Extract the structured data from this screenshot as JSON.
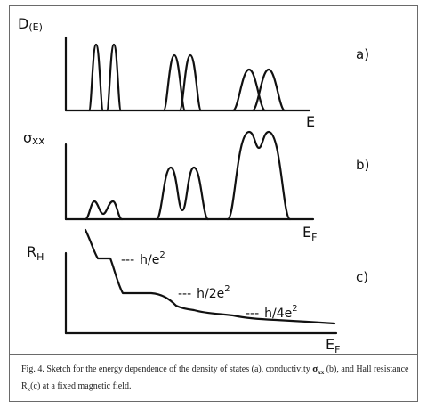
{
  "panels": {
    "a": {
      "tag": "a)",
      "ylabel_main": "D",
      "ylabel_sub": "(E)",
      "xlabel": "E"
    },
    "b": {
      "tag": "b)",
      "ylabel_main": "σ",
      "ylabel_sub": "xx",
      "xlabel_main": "E",
      "xlabel_sub": "F"
    },
    "c": {
      "tag": "c)",
      "ylabel_main": "R",
      "ylabel_sub": "H",
      "xlabel_main": "E",
      "xlabel_sub": "F",
      "plateau_labels": [
        {
          "lead": "---",
          "text": "h/e",
          "sup": "2"
        },
        {
          "lead": "---",
          "text": "h/2e",
          "sup": "2"
        },
        {
          "lead": "---",
          "text": "h/4e",
          "sup": "2"
        }
      ]
    }
  },
  "caption": {
    "prefix": "Fig. 4. Sketch for the energy dependence of the density of states (a), conductivity ",
    "symbol_main": "σ",
    "symbol_sub": "xx",
    "middle": " (b), and Hall resistance R",
    "r_sub": "x",
    "suffix": "(c) at a fixed magnetic field."
  }
}
